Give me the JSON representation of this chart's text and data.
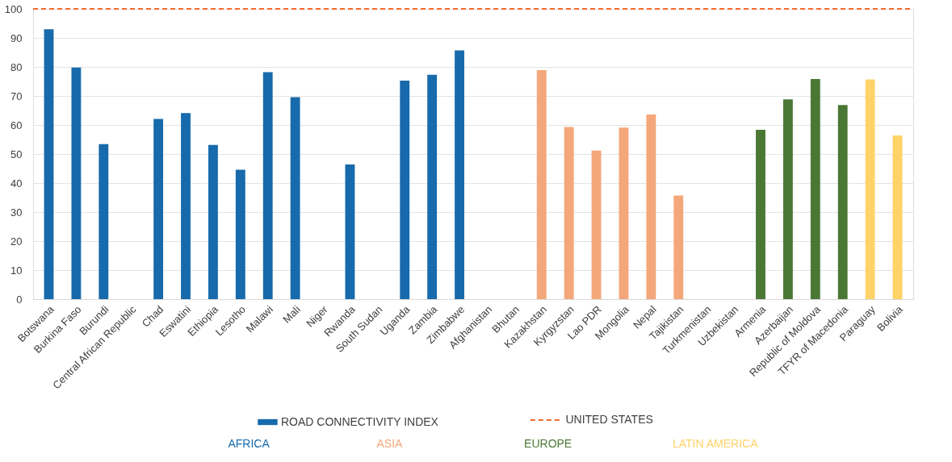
{
  "chart_data": {
    "type": "bar",
    "categories": [
      "Botswana",
      "Burkina Faso",
      "Burundi",
      "Central African Republic",
      "Chad",
      "Eswatini",
      "Ethiopia",
      "Lesotho",
      "Malawi",
      "Mali",
      "Niger",
      "Rwanda",
      "South Sudan",
      "Uganda",
      "Zambia",
      "Zimbabwe",
      "Afghanistan",
      "Bhutan",
      "Kazakhstan",
      "Kyrgyzstan",
      "Lao PDR",
      "Mongolia",
      "Nepal",
      "Tajikistan",
      "Turkmenistan",
      "Uzbekistan",
      "Armenia",
      "Azerbaijan",
      "Republic of Moldova",
      "TFYR of Macedonia",
      "Paraguay",
      "Bolivia"
    ],
    "series": [
      {
        "name": "ROAD CONNECTIVITY INDEX",
        "color": "#176aab",
        "values": [
          93.0,
          79.8,
          53.4,
          null,
          62.1,
          64.1,
          53.1,
          44.6,
          78.2,
          69.6,
          null,
          46.4,
          null,
          75.3,
          77.3,
          85.7,
          null,
          null,
          78.9,
          59.3,
          51.2,
          59.1,
          63.6,
          35.7,
          null,
          null,
          58.3,
          68.8,
          75.8,
          66.9,
          75.7,
          56.4
        ],
        "colors": [
          "#176aab",
          "#176aab",
          "#176aab",
          "#176aab",
          "#176aab",
          "#176aab",
          "#176aab",
          "#176aab",
          "#176aab",
          "#176aab",
          "#176aab",
          "#176aab",
          "#176aab",
          "#176aab",
          "#176aab",
          "#176aab",
          "#f4a77a",
          "#f4a77a",
          "#f4a77a",
          "#f4a77a",
          "#f4a77a",
          "#f4a77a",
          "#f4a77a",
          "#f4a77a",
          "#f4a77a",
          "#f4a77a",
          "#4a7834",
          "#4a7834",
          "#4a7834",
          "#4a7834",
          "#fed367",
          "#fed367"
        ]
      }
    ],
    "annotations": [
      "AFRICA",
      "ASIA",
      "EUROPE",
      "LATIN AMERICA"
    ],
    "ref_lines": [
      {
        "axis": "y",
        "value": 100,
        "label": "UNITED STATES",
        "color": "#f26b2a",
        "line_style": "dashed"
      }
    ],
    "ylim": [
      0,
      100
    ],
    "yticks": [
      0,
      10,
      20,
      30,
      40,
      50,
      60,
      70,
      80,
      90,
      100
    ],
    "grid": "y",
    "legend": "bottom"
  }
}
